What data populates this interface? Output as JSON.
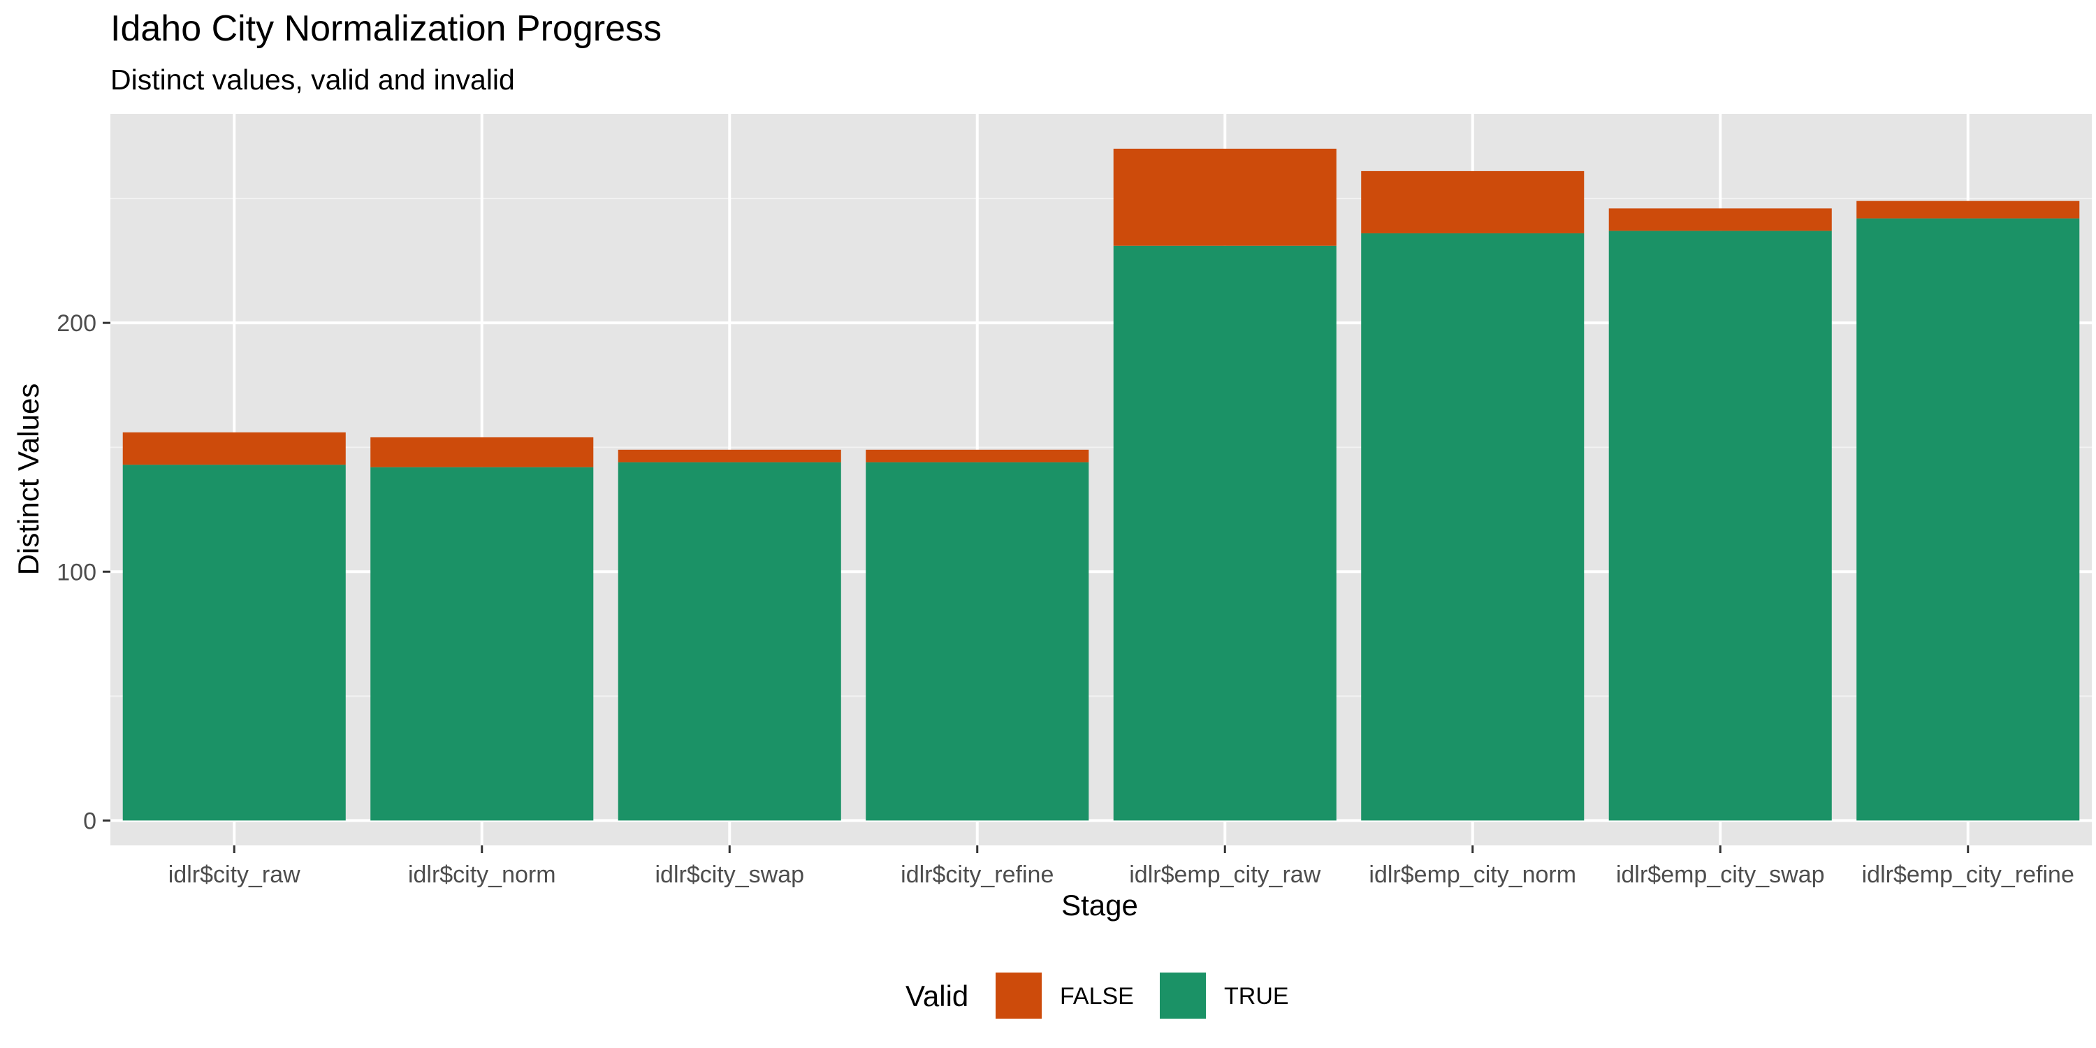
{
  "chart_data": {
    "type": "bar",
    "stacked": true,
    "title": "Idaho City Normalization Progress",
    "subtitle": "Distinct values, valid and invalid",
    "xlabel": "Stage",
    "ylabel": "Distinct Values",
    "categories": [
      "idlr$city_raw",
      "idlr$city_norm",
      "idlr$city_swap",
      "idlr$city_refine",
      "idlr$emp_city_raw",
      "idlr$emp_city_norm",
      "idlr$emp_city_swap",
      "idlr$emp_city_refine"
    ],
    "series": [
      {
        "name": "TRUE",
        "color": "#1b9266",
        "values": [
          143,
          142,
          144,
          144,
          231,
          236,
          237,
          242
        ]
      },
      {
        "name": "FALSE",
        "color": "#cd4b0b",
        "values": [
          13,
          12,
          5,
          5,
          39,
          25,
          9,
          7
        ]
      }
    ],
    "ylim": [
      -10,
      284
    ],
    "yticks": [
      0,
      100,
      200
    ],
    "grid": true,
    "legend": {
      "title": "Valid",
      "position": "bottom",
      "entries": [
        {
          "label": "FALSE",
          "color": "#cd4b0b"
        },
        {
          "label": "TRUE",
          "color": "#1b9266"
        }
      ]
    }
  }
}
